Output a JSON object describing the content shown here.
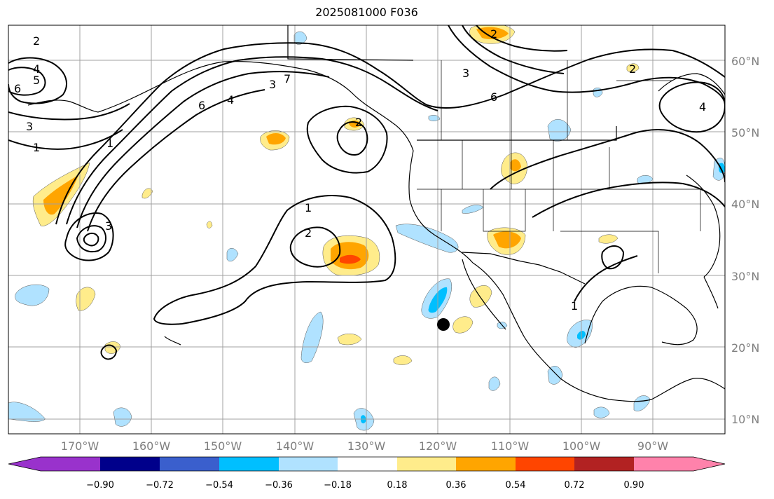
{
  "title": "2025081000 F036",
  "lat_labels": [
    "60°N",
    "50°N",
    "40°N",
    "30°N",
    "20°N",
    "10°N"
  ],
  "lon_labels": [
    "170°W",
    "160°W",
    "150°W",
    "140°W",
    "130°W",
    "120°W",
    "110°W",
    "100°W",
    "90°W"
  ],
  "colorbar": {
    "colors": [
      "#9932cc",
      "#00008b",
      "#3a5fcd",
      "#00bfff",
      "#b0e2ff",
      "#ffffff",
      "#ffec8b",
      "#ffa500",
      "#ff4500",
      "#b22222",
      "#ff82ab"
    ],
    "tick_labels": [
      "−0.90",
      "−0.72",
      "−0.54",
      "−0.36",
      "−0.18",
      "0.18",
      "0.36",
      "0.54",
      "0.72",
      "0.90"
    ]
  },
  "contour_labels": [
    "2",
    "4",
    "5",
    "6",
    "3",
    "1",
    "6",
    "4",
    "3",
    "7",
    "2",
    "6",
    "3",
    "2",
    "1",
    "2",
    "1",
    "1",
    "3",
    "4",
    "2"
  ],
  "colors": {
    "light_yellow": "#ffec8b",
    "orange": "#ffa500",
    "red_orange": "#ff4500",
    "light_blue": "#b0e2ff",
    "deep_sky_blue": "#00bfff"
  },
  "marker": "storm-center-dot"
}
